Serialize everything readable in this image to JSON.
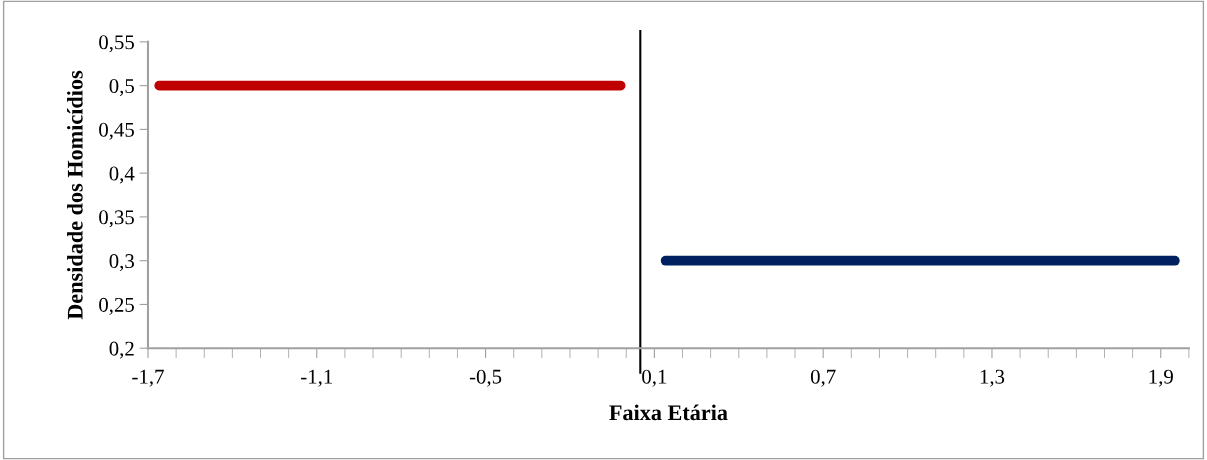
{
  "chart_data": {
    "type": "line",
    "xlabel": "Faixa Etária",
    "ylabel": "Densidade dos Homicídios",
    "series": [
      {
        "color": "#c00000",
        "x": [
          -1.66,
          -0.02
        ],
        "values": [
          0.5,
          0.5
        ]
      },
      {
        "color": "#002060",
        "x": [
          0.14,
          1.95
        ],
        "values": [
          0.3,
          0.3
        ]
      }
    ],
    "xlim": [
      -1.7,
      2.0
    ],
    "xticks": [
      {
        "value": -1.7,
        "label": "-1,7"
      },
      {
        "value": -1.1,
        "label": "-1,1"
      },
      {
        "value": -0.5,
        "label": "-0,5"
      },
      {
        "value": 0.1,
        "label": "0,1"
      },
      {
        "value": 0.7,
        "label": "0,7"
      },
      {
        "value": 1.3,
        "label": "1,3"
      },
      {
        "value": 1.9,
        "label": "1,9"
      }
    ],
    "ylim": [
      0.2,
      0.55
    ],
    "yticks": [
      {
        "value": 0.2,
        "label": "0,2"
      },
      {
        "value": 0.25,
        "label": "0,25"
      },
      {
        "value": 0.3,
        "label": "0,3"
      },
      {
        "value": 0.35,
        "label": "0,35"
      },
      {
        "value": 0.4,
        "label": "0,4"
      },
      {
        "value": 0.45,
        "label": "0,45"
      },
      {
        "value": 0.5,
        "label": "0,5"
      },
      {
        "value": 0.55,
        "label": "0,55"
      }
    ],
    "ref_lines": [
      {
        "axis": "x",
        "value": 0.05,
        "color": "#000000"
      }
    ],
    "grid": false,
    "legend": false
  }
}
